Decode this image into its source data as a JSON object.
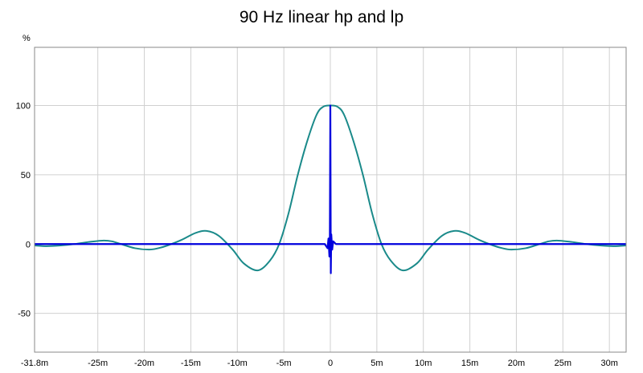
{
  "chart_data": {
    "type": "line",
    "title": "90 Hz linear hp and lp",
    "ylabel": "%",
    "xlabel": "",
    "xlim": [
      -0.0318,
      0.0318
    ],
    "ylim": [
      -78,
      142
    ],
    "grid": true,
    "x_ticks": [
      {
        "value": -0.0318,
        "label": "-31.8m"
      },
      {
        "value": -0.025,
        "label": "-25m"
      },
      {
        "value": -0.02,
        "label": "-20m"
      },
      {
        "value": -0.015,
        "label": "-15m"
      },
      {
        "value": -0.01,
        "label": "-10m"
      },
      {
        "value": -0.005,
        "label": "-5m"
      },
      {
        "value": 0,
        "label": "0"
      },
      {
        "value": 0.005,
        "label": "5m"
      },
      {
        "value": 0.01,
        "label": "10m"
      },
      {
        "value": 0.015,
        "label": "15m"
      },
      {
        "value": 0.02,
        "label": "20m"
      },
      {
        "value": 0.025,
        "label": "25m"
      },
      {
        "value": 0.03,
        "label": "30m"
      }
    ],
    "y_ticks": [
      {
        "value": 100,
        "label": "100"
      },
      {
        "value": 50,
        "label": "50"
      },
      {
        "value": 0,
        "label": "0"
      },
      {
        "value": -50,
        "label": "-50"
      }
    ],
    "series": [
      {
        "color": "#1a8a8a",
        "x": [
          -0.0318,
          -0.0305,
          -0.029,
          -0.0275,
          -0.026,
          -0.0245,
          -0.0235,
          -0.0225,
          -0.021,
          -0.0195,
          -0.0185,
          -0.0175,
          -0.016,
          -0.0145,
          -0.0133,
          -0.012,
          -0.0105,
          -0.0093,
          -0.0078,
          -0.0065,
          -0.0055,
          -0.0045,
          -0.0035,
          -0.0025,
          -0.0015,
          -0.0008,
          0,
          0.0008,
          0.0015,
          0.0025,
          0.0035,
          0.0045,
          0.0055,
          0.0065,
          0.0078,
          0.0093,
          0.0105,
          0.012,
          0.0133,
          0.0145,
          0.016,
          0.0175,
          0.0185,
          0.0195,
          0.021,
          0.0225,
          0.0235,
          0.0245,
          0.026,
          0.0275,
          0.029,
          0.0305,
          0.0318
        ],
        "y": [
          -1,
          -1.5,
          -1,
          0,
          1.5,
          2.5,
          2,
          0,
          -3,
          -4,
          -3,
          -1,
          3,
          8,
          9.5,
          6,
          -4,
          -14,
          -19,
          -12,
          0,
          22,
          50,
          74,
          93,
          99,
          100,
          99,
          93,
          74,
          50,
          22,
          0,
          -12,
          -19,
          -14,
          -4,
          6,
          9.5,
          8,
          3,
          -1,
          -3,
          -4,
          -3,
          0,
          2,
          2.5,
          1.5,
          0,
          -1,
          -1.5,
          -1
        ]
      },
      {
        "color": "#0000dd",
        "x": [
          -0.0318,
          -0.0006,
          -0.0003,
          -0.0002,
          -0.0001,
          -5e-05,
          0,
          5e-05,
          0.0001,
          0.0002,
          0.0003,
          0.0006,
          0.0318
        ],
        "y": [
          0,
          0,
          -3,
          4,
          -9,
          6,
          100,
          -21,
          7,
          -4,
          2,
          0,
          0
        ]
      }
    ]
  }
}
